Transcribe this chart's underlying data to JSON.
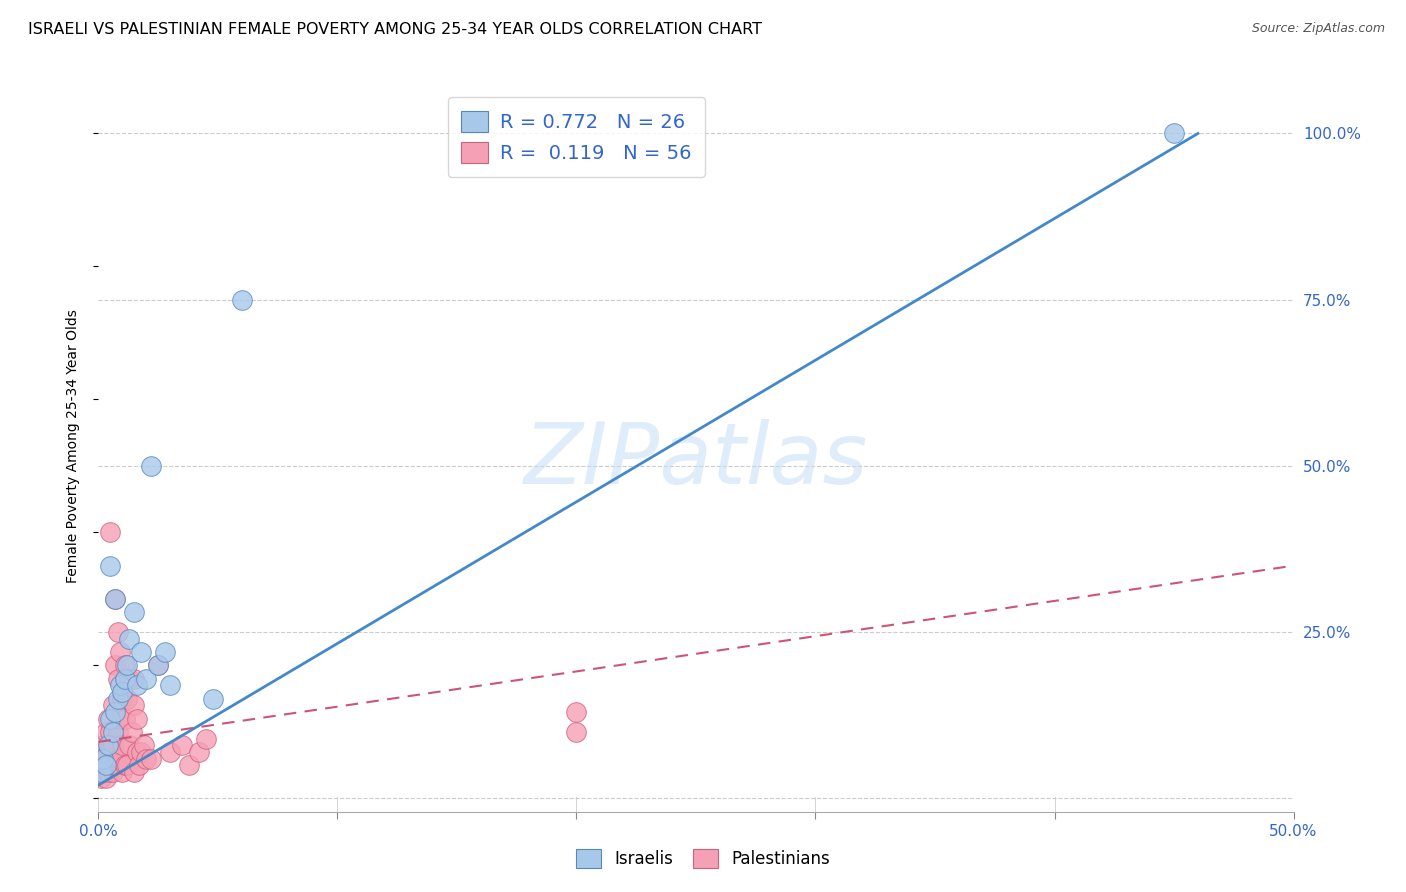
{
  "title": "ISRAELI VS PALESTINIAN FEMALE POVERTY AMONG 25-34 YEAR OLDS CORRELATION CHART",
  "source": "Source: ZipAtlas.com",
  "ylabel": "Female Poverty Among 25-34 Year Olds",
  "xlim": [
    0.0,
    0.5
  ],
  "ylim": [
    -0.02,
    1.08
  ],
  "xticks": [
    0.0,
    0.1,
    0.2,
    0.3,
    0.4,
    0.5
  ],
  "xtick_labels_show": [
    "0.0%",
    "",
    "",
    "",
    "",
    "50.0%"
  ],
  "ytick_labels_right": [
    "",
    "25.0%",
    "50.0%",
    "75.0%",
    "100.0%"
  ],
  "ytick_vals_right": [
    0.0,
    0.25,
    0.5,
    0.75,
    1.0
  ],
  "israeli_color": "#a8c8ea",
  "palestinian_color": "#f5a0b5",
  "israeli_edge": "#5588bb",
  "palestinian_edge": "#d06080",
  "trendline_israeli_color": "#4488cc",
  "trendline_palestinian_color": "#cc5577",
  "R_israeli": 0.772,
  "N_israeli": 26,
  "R_palestinian": 0.119,
  "N_palestinian": 56,
  "watermark": "ZIPatlas",
  "background_color": "#ffffff",
  "grid_color": "#cccccc",
  "israeli_x": [
    0.001,
    0.002,
    0.003,
    0.004,
    0.005,
    0.005,
    0.006,
    0.007,
    0.007,
    0.008,
    0.009,
    0.01,
    0.011,
    0.012,
    0.013,
    0.015,
    0.016,
    0.018,
    0.02,
    0.022,
    0.025,
    0.028,
    0.03,
    0.048,
    0.06,
    0.45
  ],
  "israeli_y": [
    0.04,
    0.06,
    0.05,
    0.08,
    0.12,
    0.35,
    0.1,
    0.3,
    0.13,
    0.15,
    0.17,
    0.16,
    0.18,
    0.2,
    0.24,
    0.28,
    0.17,
    0.22,
    0.18,
    0.5,
    0.2,
    0.22,
    0.17,
    0.15,
    0.75,
    1.0
  ],
  "palestinian_x": [
    0.001,
    0.001,
    0.002,
    0.002,
    0.003,
    0.003,
    0.003,
    0.004,
    0.004,
    0.004,
    0.005,
    0.005,
    0.005,
    0.005,
    0.006,
    0.006,
    0.006,
    0.007,
    0.007,
    0.007,
    0.008,
    0.008,
    0.008,
    0.008,
    0.009,
    0.009,
    0.009,
    0.01,
    0.01,
    0.01,
    0.011,
    0.011,
    0.011,
    0.012,
    0.012,
    0.013,
    0.013,
    0.014,
    0.015,
    0.015,
    0.015,
    0.016,
    0.016,
    0.017,
    0.018,
    0.019,
    0.02,
    0.022,
    0.025,
    0.03,
    0.035,
    0.038,
    0.042,
    0.045,
    0.2,
    0.2
  ],
  "palestinian_y": [
    0.03,
    0.06,
    0.04,
    0.08,
    0.03,
    0.06,
    0.1,
    0.04,
    0.07,
    0.12,
    0.05,
    0.08,
    0.1,
    0.4,
    0.04,
    0.08,
    0.14,
    0.05,
    0.2,
    0.3,
    0.06,
    0.1,
    0.18,
    0.25,
    0.06,
    0.12,
    0.22,
    0.04,
    0.08,
    0.15,
    0.05,
    0.12,
    0.2,
    0.05,
    0.15,
    0.08,
    0.18,
    0.1,
    0.04,
    0.14,
    0.18,
    0.07,
    0.12,
    0.05,
    0.07,
    0.08,
    0.06,
    0.06,
    0.2,
    0.07,
    0.08,
    0.05,
    0.07,
    0.09,
    0.1,
    0.13
  ],
  "trendline_israeli_x0": 0.0,
  "trendline_israeli_y0": 0.02,
  "trendline_israeli_x1": 0.46,
  "trendline_israeli_y1": 1.0,
  "trendline_pal_x0": 0.0,
  "trendline_pal_y0": 0.085,
  "trendline_pal_x1": 0.5,
  "trendline_pal_y1": 0.35
}
